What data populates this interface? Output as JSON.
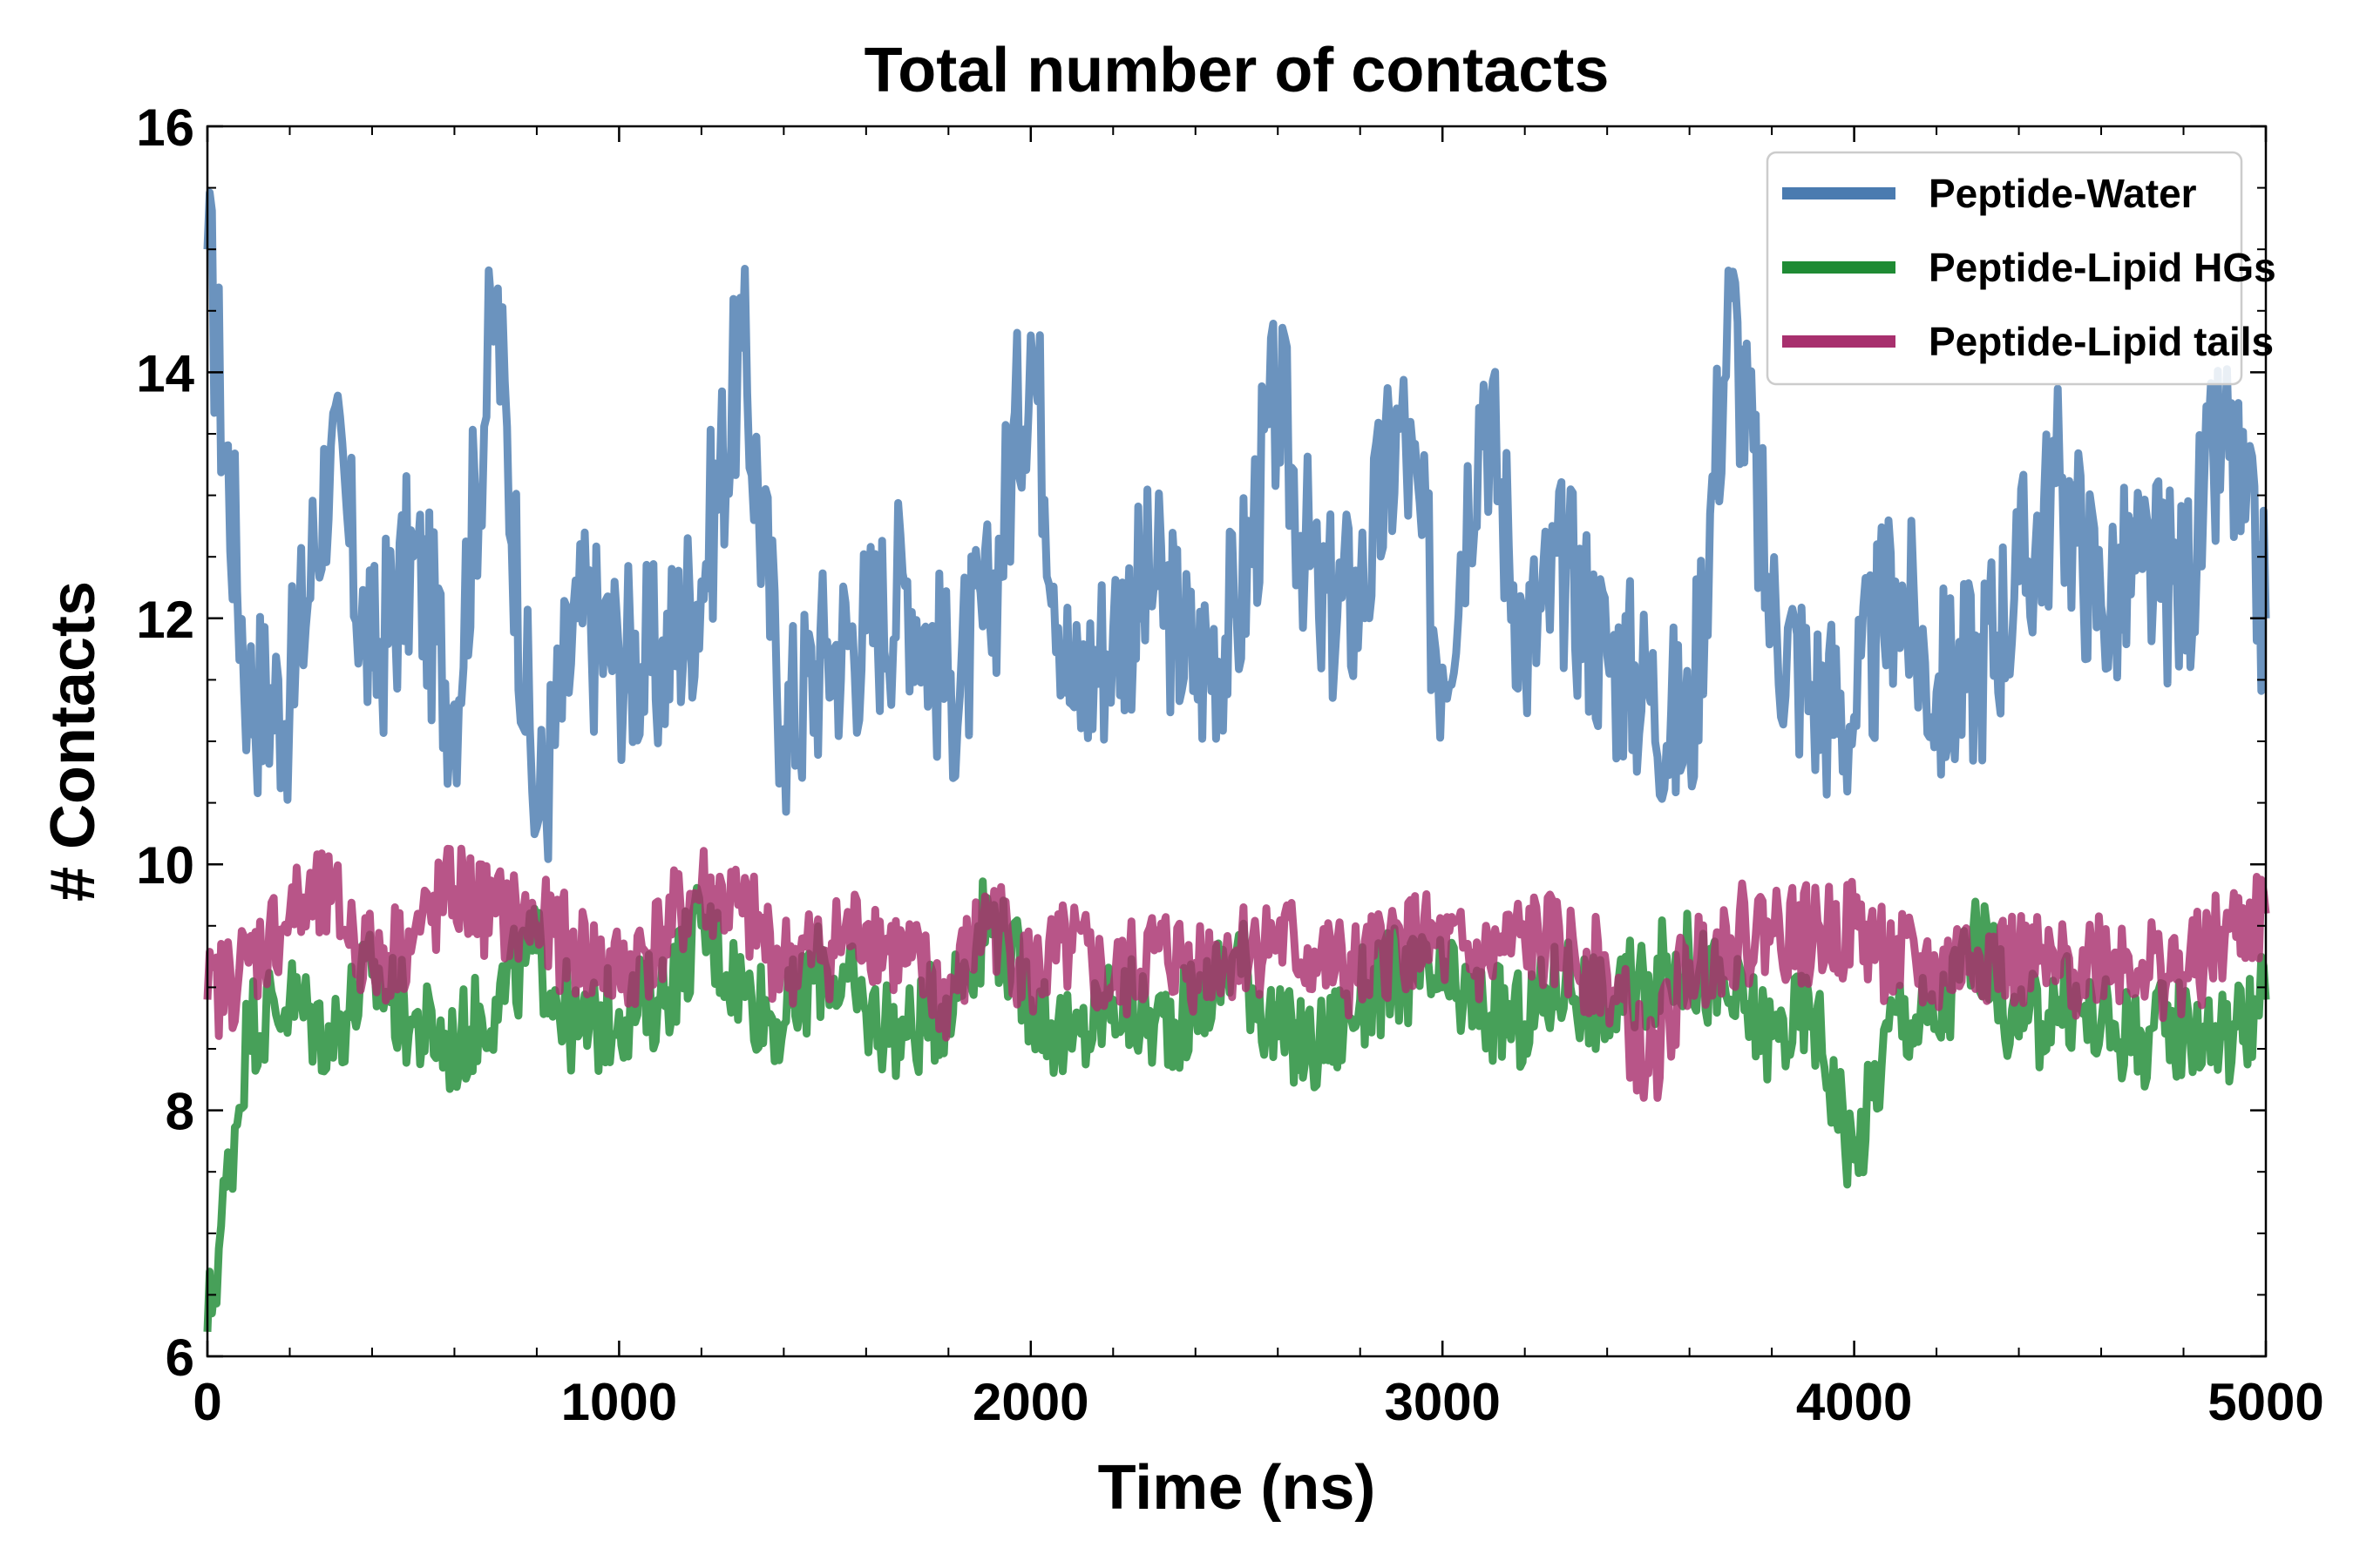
{
  "chart_data": {
    "type": "line",
    "title": "Total number of contacts",
    "xlabel": "Time (ns)",
    "ylabel": "# Contacts",
    "xlim": [
      0,
      5000
    ],
    "ylim": [
      6,
      16
    ],
    "xticks": [
      0,
      1000,
      2000,
      3000,
      4000,
      5000
    ],
    "yticks": [
      6,
      8,
      10,
      12,
      14,
      16
    ],
    "grid": false,
    "legend_position": "top-right",
    "x": [
      0,
      100,
      200,
      300,
      400,
      500,
      600,
      700,
      800,
      900,
      1000,
      1100,
      1200,
      1300,
      1400,
      1500,
      1600,
      1700,
      1800,
      1900,
      2000,
      2100,
      2200,
      2300,
      2400,
      2500,
      2600,
      2700,
      2800,
      2900,
      3000,
      3100,
      3200,
      3300,
      3400,
      3500,
      3600,
      3700,
      3800,
      3900,
      4000,
      4100,
      4200,
      4300,
      4400,
      4500,
      4600,
      4700,
      4800,
      4900,
      5000
    ],
    "series": [
      {
        "name": "Peptide-Water",
        "color": "#4a7bb0",
        "values": [
          15.0,
          11.4,
          11.3,
          13.4,
          11.6,
          12.5,
          11.3,
          14.6,
          10.3,
          12.0,
          11.7,
          11.6,
          12.3,
          14.2,
          11.1,
          11.7,
          11.9,
          12.3,
          11.4,
          12.0,
          14.3,
          11.3,
          11.9,
          12.3,
          11.6,
          12.0,
          13.8,
          12.0,
          12.2,
          13.6,
          11.6,
          13.9,
          11.8,
          12.4,
          11.7,
          11.4,
          11.0,
          14.6,
          12.0,
          11.4,
          11.2,
          12.3,
          11.4,
          11.6,
          12.3,
          13.1,
          12.1,
          12.4,
          12.2,
          13.5,
          12.0
        ]
      },
      {
        "name": "Peptide-Lipid HGs",
        "color": "#1f8b34",
        "values": [
          6.2,
          8.7,
          8.9,
          8.6,
          9.1,
          8.7,
          8.5,
          8.9,
          9.3,
          8.6,
          8.8,
          8.9,
          9.5,
          9.0,
          8.7,
          9.2,
          8.8,
          8.6,
          8.9,
          9.6,
          8.9,
          8.5,
          8.9,
          8.7,
          8.8,
          9.3,
          8.6,
          8.5,
          8.9,
          9.1,
          9.0,
          8.8,
          8.7,
          9.1,
          8.8,
          9.1,
          9.2,
          8.9,
          8.6,
          8.8,
          7.6,
          8.8,
          8.7,
          9.4,
          8.6,
          8.9,
          8.7,
          8.6,
          8.7,
          8.6,
          8.9
        ]
      },
      {
        "name": "Peptide-Lipid tails",
        "color": "#a8306e",
        "values": [
          8.9,
          9.2,
          9.6,
          9.7,
          9.2,
          9.4,
          9.8,
          9.6,
          9.5,
          9.3,
          9.1,
          9.4,
          9.8,
          9.6,
          9.2,
          9.3,
          9.5,
          9.2,
          8.9,
          9.6,
          9.1,
          9.3,
          9.0,
          9.3,
          9.2,
          9.3,
          9.4,
          9.2,
          9.1,
          9.4,
          9.3,
          9.2,
          9.4,
          9.3,
          9.1,
          8.3,
          9.2,
          9.4,
          9.5,
          9.4,
          9.5,
          9.2,
          9.1,
          9.3,
          9.2,
          9.1,
          9.3,
          9.2,
          9.1,
          9.4,
          9.6
        ]
      }
    ]
  }
}
